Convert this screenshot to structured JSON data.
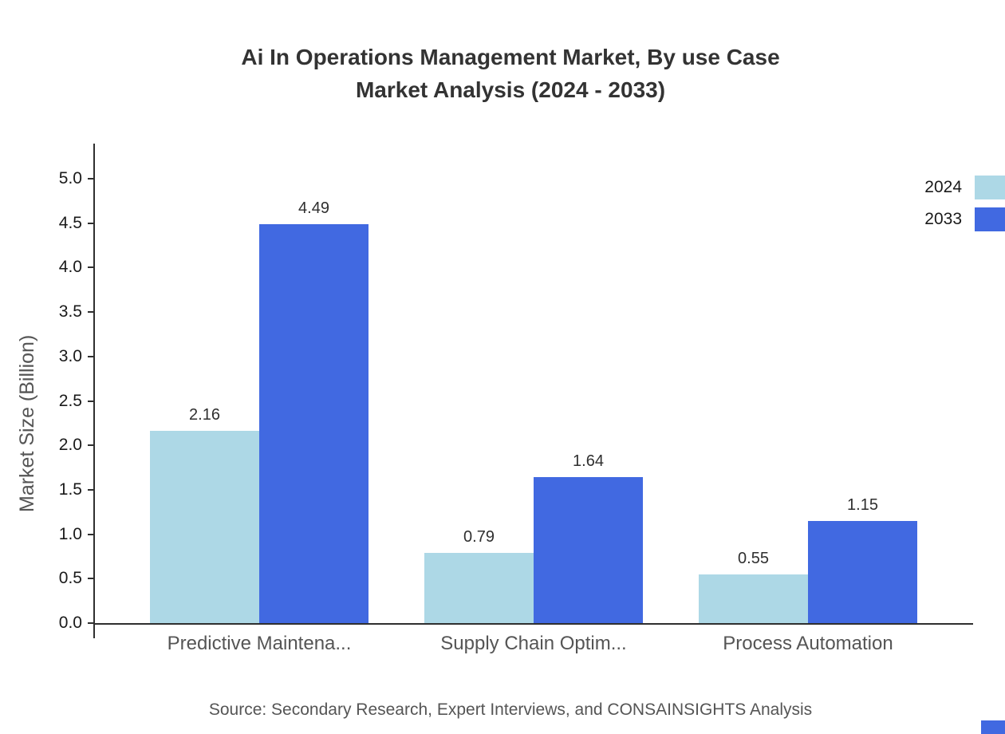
{
  "header": {
    "title_line1": "Ai In Operations Management Market, By use Case",
    "title_line2": "Market Analysis (2024 - 2033)"
  },
  "source": "Source: Secondary Research, Expert Interviews, and CONSAINSIGHTS Analysis",
  "colors": {
    "series_2024": "#add8e6",
    "series_2033": "#4169e1",
    "axis": "#2f2f2f",
    "muted_text": "#555555"
  },
  "chart_data": {
    "type": "bar",
    "title": "Ai In Operations Management Market, By use Case Market Analysis (2024 - 2033)",
    "xlabel": "",
    "ylabel": "Market Size (Billion)",
    "categories": [
      "Predictive Maintena...",
      "Supply Chain Optim...",
      "Process Automation"
    ],
    "series": [
      {
        "name": "2024",
        "color": "#add8e6",
        "values": [
          2.16,
          0.79,
          0.55
        ]
      },
      {
        "name": "2033",
        "color": "#4169e1",
        "values": [
          4.49,
          1.64,
          1.15
        ]
      }
    ],
    "ylim": [
      0,
      5.4
    ],
    "yticks": [
      0.0,
      0.5,
      1.0,
      1.5,
      2.0,
      2.5,
      3.0,
      3.5,
      4.0,
      4.5,
      5.0
    ],
    "grid": false,
    "legend_position": "top-right"
  },
  "legend": {
    "items": [
      {
        "label": "2024"
      },
      {
        "label": "2033"
      }
    ]
  }
}
